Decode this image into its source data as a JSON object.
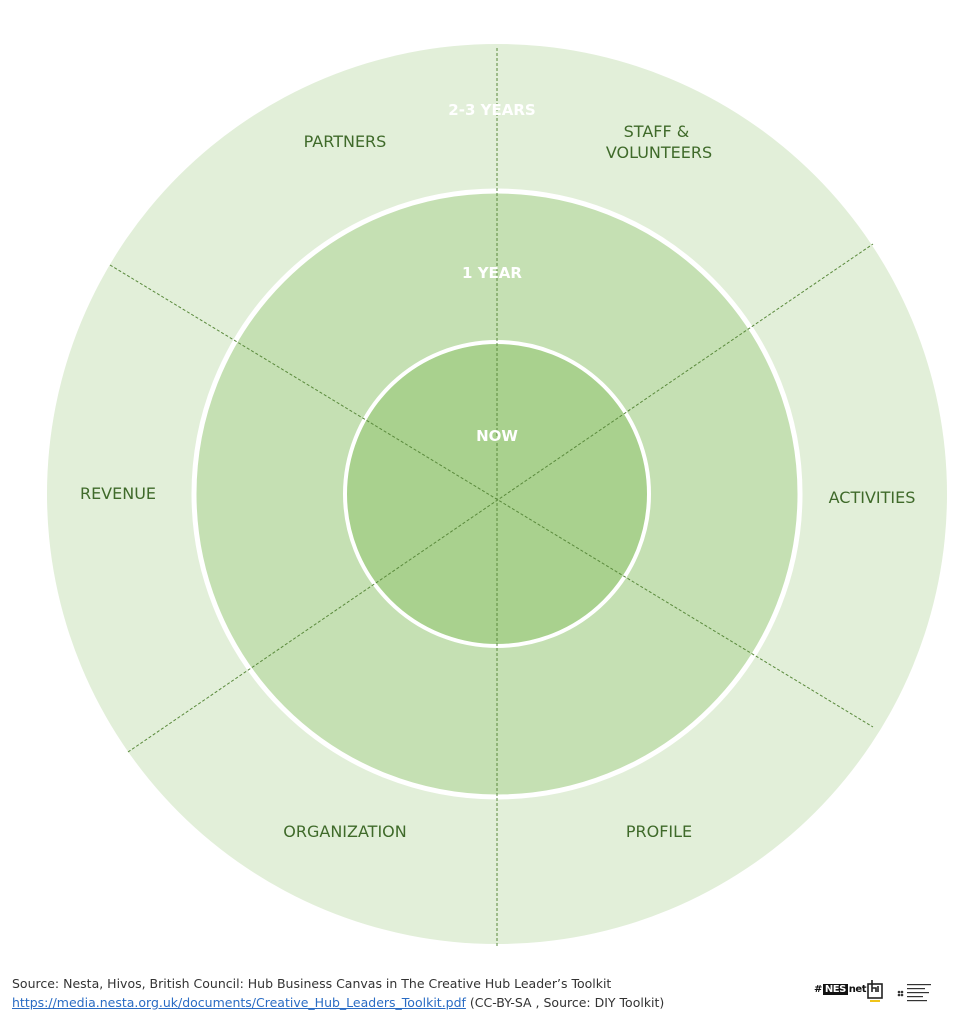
{
  "diagram": {
    "rings": [
      {
        "label": "2-3 YEARS",
        "color": "#e2efd9"
      },
      {
        "label": "1 YEAR",
        "color": "#c5e0b3"
      },
      {
        "label": "NOW",
        "color": "#a9d18e"
      }
    ],
    "segments": [
      {
        "label_lines": [
          "PARTNERS"
        ]
      },
      {
        "label_lines": [
          "STAFF &",
          "VOLUNTEERS"
        ]
      },
      {
        "label_lines": [
          "ACTIVITIES"
        ]
      },
      {
        "label_lines": [
          "PROFILE"
        ]
      },
      {
        "label_lines": [
          "ORGANIZATION"
        ]
      },
      {
        "label_lines": [
          "REVENUE"
        ]
      }
    ],
    "colors": {
      "divider": "#5a8a3c",
      "segment_text": "#3f6a2a",
      "ring_label_text": "#ffffff"
    }
  },
  "footer": {
    "source_text": "Source: Nesta, Hivos, British Council: Hub Business Canvas in The Creative Hub Leader’s Toolkit",
    "link_text": "https://media.nesta.org.uk/documents/Creative_Hub_Leaders_Toolkit.pdf",
    "license_text": " (CC-BY-SA , Source: DIY Toolkit)"
  },
  "logos": {
    "nesnet_prefix": "#",
    "nesnet_box": "NES",
    "nesnet_suffix": "net",
    "icons": [
      "nesnet-logo-icon",
      "hub-logo-icon",
      "british-council-logo-icon"
    ]
  }
}
